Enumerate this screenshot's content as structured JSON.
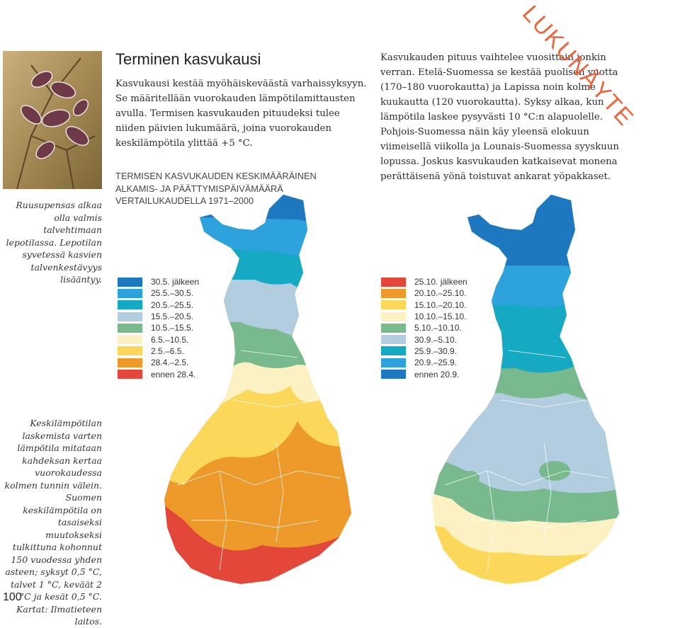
{
  "page_number": "100",
  "title": "Terminen kasvukausi",
  "intro_text": "Kasvukausi kestää myöhäiskeväästä varhaissyksyyn. Se määritellään vuorokauden lämpötilamittausten avulla. Termisen kasvukauden pituudeksi tulee niiden päivien lukumäärä, joina vuorokauden keskilämpötila ylittää +5 °C.",
  "map_subtitle": {
    "line1": "TERMISEN KASVUKAUDEN KESKIMÄÄRÄINEN",
    "line2": "ALKAMIS- JA PÄÄTTYMISPÄIVÄMÄÄRÄ",
    "line3": "VERTAILUKAUDELLA 1971–2000"
  },
  "right_text": "Kasvukauden pituus vaihtelee vuosittain jonkin verran. Etelä-Suomessa se kestää puolisen vuotta (170–180 vuorokautta) ja Lapissa noin kolme kuukautta (120 vuorokautta). Syksy alkaa, kun lämpötila laskee pysyvästi 10 °C:n alapuolelle. Pohjois-Suomessa näin käy yleensä elokuun viimeisellä viikolla ja Lounais-Suomessa syyskuun lopussa. Joskus kasvukauden katkaisevat monena perättäisenä yönä toistuvat ankarat yöpakkaset.",
  "photo_caption": "Ruusupensas alkaa olla valmis talvehtimaan lepotilassa. Lepotilan syvetessä kasvien talvenkestävyys lisääntyy.",
  "side_note": "Keskilämpötilan laskemista varten lämpötila mitataan kahdeksan kertaa vuorokaudessa kolmen tunnin välein. Suomen keskilämpötila on tasaiseksi muutokseksi tulkittuna kohonnut 150 vuodessa yhden asteen; syksyt 0,5 °C, talvet 1 °C, keväät 2 °C ja kesät 0,5 °C. Kartat: Ilmatieteen laitos.",
  "watermark": "LUKUNÄYTE",
  "legend_start": [
    {
      "label": "30.5. jälkeen",
      "color": "#1e78c0"
    },
    {
      "label": "25.5.–30.5.",
      "color": "#2ea2dc"
    },
    {
      "label": "20.5.–25.5.",
      "color": "#16a9c4"
    },
    {
      "label": "15.5.–20.5.",
      "color": "#b3cde0"
    },
    {
      "label": "10.5.–15.5.",
      "color": "#78b98e"
    },
    {
      "label": "6.5.–10.5.",
      "color": "#fbf1c2"
    },
    {
      "label": "2.5.–6.5.",
      "color": "#fcd85a"
    },
    {
      "label": "28.4.–2.5.",
      "color": "#ee9a2a"
    },
    {
      "label": "ennen 28.4.",
      "color": "#e2473a"
    }
  ],
  "legend_end": [
    {
      "label": "25.10. jälkeen",
      "color": "#e2473a"
    },
    {
      "label": "20.10.–25.10.",
      "color": "#ee9a2a"
    },
    {
      "label": "15.10.–20.10.",
      "color": "#fcd85a"
    },
    {
      "label": "10.10.–15.10.",
      "color": "#fbf1c2"
    },
    {
      "label": "5.10.–10.10.",
      "color": "#78b98e"
    },
    {
      "label": "30.9.–5.10.",
      "color": "#b3cde0"
    },
    {
      "label": "25.9.–30.9.",
      "color": "#16a9c4"
    },
    {
      "label": "20.9.–25.9.",
      "color": "#2ea2dc"
    },
    {
      "label": "ennen 20.9.",
      "color": "#1e78c0"
    }
  ]
}
